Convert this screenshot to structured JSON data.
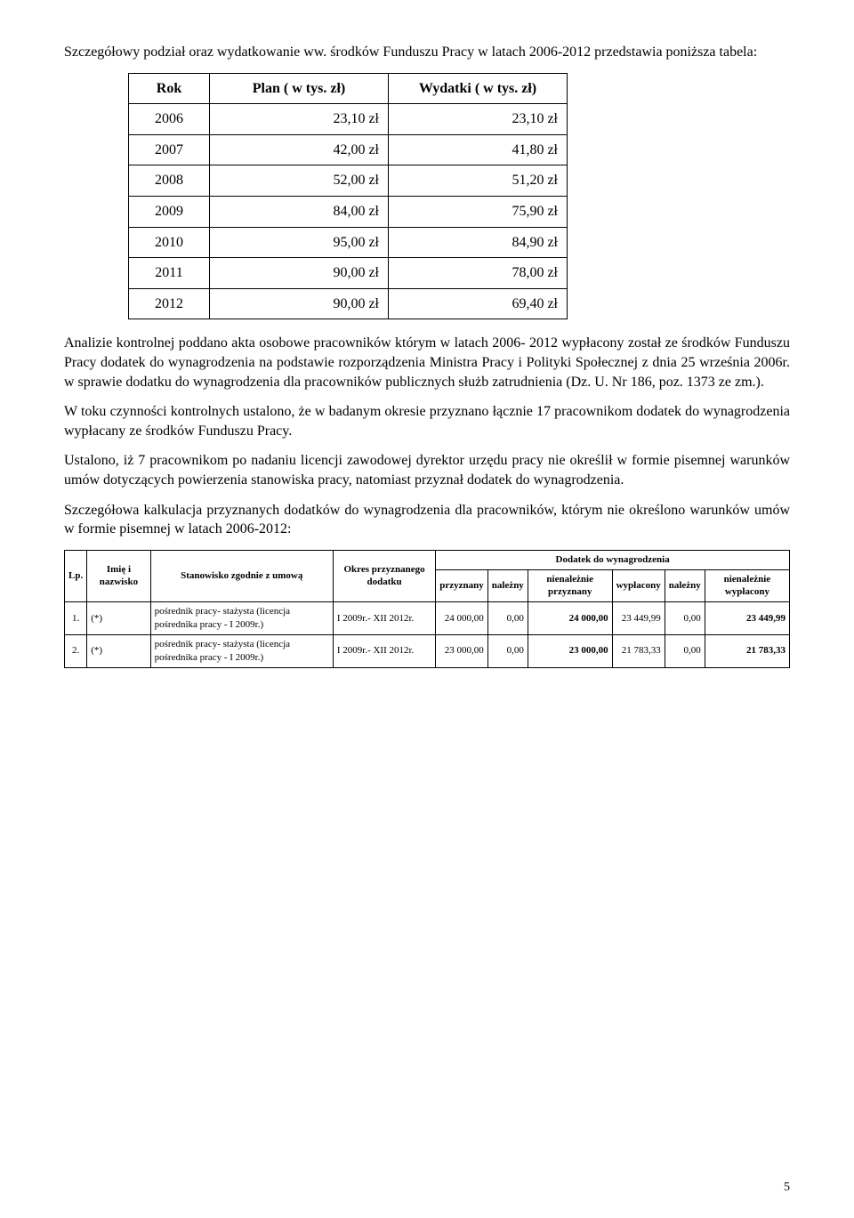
{
  "intro": "Szczegółowy podział oraz wydatkowanie ww. środków Funduszu Pracy w latach 2006-2012 przedstawia poniższa tabela:",
  "table1": {
    "headers": [
      "Rok",
      "Plan ( w tys. zł)",
      "Wydatki ( w tys. zł)"
    ],
    "rows": [
      [
        "2006",
        "23,10 zł",
        "23,10 zł"
      ],
      [
        "2007",
        "42,00 zł",
        "41,80 zł"
      ],
      [
        "2008",
        "52,00 zł",
        "51,20 zł"
      ],
      [
        "2009",
        "84,00 zł",
        "75,90 zł"
      ],
      [
        "2010",
        "95,00 zł",
        "84,90 zł"
      ],
      [
        "2011",
        "90,00 zł",
        "78,00 zł"
      ],
      [
        "2012",
        "90,00 zł",
        "69,40 zł"
      ]
    ]
  },
  "para1": "Analizie kontrolnej poddano akta osobowe pracowników którym w latach 2006- 2012 wypłacony został ze środków Funduszu Pracy dodatek do wynagrodzenia na podstawie rozporządzenia Ministra Pracy i Polityki Społecznej z dnia 25 września 2006r. w sprawie dodatku do wynagrodzenia dla pracowników publicznych służb zatrudnienia (Dz. U. Nr 186, poz. 1373 ze zm.).",
  "para2": "W toku czynności kontrolnych ustalono, że w badanym okresie przyznano łącznie 17 pracownikom dodatek do wynagrodzenia wypłacany ze środków Funduszu Pracy.",
  "para3": "Ustalono, iż 7 pracownikom po nadaniu licencji zawodowej dyrektor urzędu pracy nie określił w formie pisemnej warunków umów dotyczących powierzenia stanowiska pracy, natomiast przyznał dodatek do wynagrodzenia.",
  "para4": "Szczegółowa kalkulacja przyznanych dodatków do wynagrodzenia dla pracowników, którym nie określono warunków umów w formie pisemnej w latach 2006-2012:",
  "table2": {
    "h_lp": "Lp.",
    "h_imie": "Imię i nazwisko",
    "h_stan": "Stanowisko zgodnie z umową",
    "h_okres": "Okres przyznanego dodatku",
    "h_dodatek": "Dodatek do wynagrodzenia",
    "h_przyznany": "przyznany",
    "h_nalezny": "należny",
    "h_nienal_przy": "nienależnie przyznany",
    "h_wyplacony": "wypłacony",
    "h_nienal_wypl": "nienależnie wypłacony",
    "rows": [
      {
        "lp": "1.",
        "imie": "(*)",
        "stan": "pośrednik pracy- stażysta (licencja pośrednika pracy - I 2009r.)",
        "okres": "I 2009r.- XII 2012r.",
        "przyznany": "24 000,00",
        "nalezny1": "0,00",
        "nienal_przy": "24 000,00",
        "wyplacony": "23 449,99",
        "nalezny2": "0,00",
        "nienal_wypl": "23 449,99"
      },
      {
        "lp": "2.",
        "imie": "(*)",
        "stan": "pośrednik pracy- stażysta (licencja pośrednika pracy - I 2009r.)",
        "okres": "I 2009r.- XII 2012r.",
        "przyznany": "23 000,00",
        "nalezny1": "0,00",
        "nienal_przy": "23 000,00",
        "wyplacony": "21 783,33",
        "nalezny2": "0,00",
        "nienal_wypl": "21 783,33"
      }
    ]
  },
  "page": "5"
}
